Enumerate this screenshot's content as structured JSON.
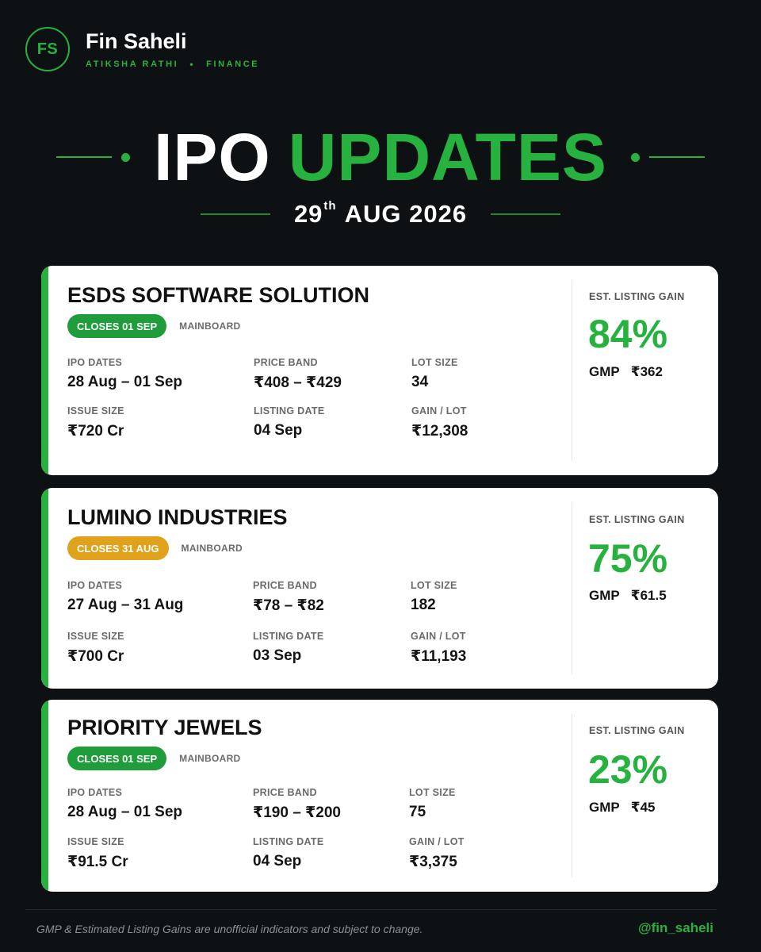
{
  "brand": {
    "logo_text": "FS",
    "name": "Fin Saheli",
    "author": "ATIKSHA RATHI",
    "separator": "•",
    "category": "FINANCE",
    "accent_color": "#27b23f"
  },
  "title": {
    "word1": "IPO",
    "word2": "UPDATES",
    "date_day": "29",
    "date_suffix": "th",
    "date_rest": "AUG 2026"
  },
  "labels": {
    "ipo_dates": "IPO DATES",
    "price_band": "PRICE BAND",
    "lot_size": "LOT SIZE",
    "issue_size": "ISSUE SIZE",
    "listing_date": "LISTING DATE",
    "gain_lot": "GAIN / LOT",
    "est_listing_gain": "EST. LISTING GAIN",
    "gmp": "GMP"
  },
  "ipos": [
    {
      "company": "ESDS SOFTWARE SOLUTION",
      "closes": "CLOSES 01 SEP",
      "closes_color": "#1f9d3a",
      "board": "MAINBOARD",
      "ipo_dates": "28 Aug – 01 Sep",
      "price_band": "₹408 – ₹429",
      "lot_size": "34",
      "issue_size": "₹720 Cr",
      "listing_date": "04 Sep",
      "gain_lot": "₹12,308",
      "listing_gain": "84%",
      "gmp": "₹362"
    },
    {
      "company": "LUMINO INDUSTRIES",
      "closes": "CLOSES 31 AUG",
      "closes_color": "#e0a21a",
      "board": "MAINBOARD",
      "ipo_dates": "27 Aug – 31 Aug",
      "price_band": "₹78 – ₹82",
      "lot_size": "182",
      "issue_size": "₹700 Cr",
      "listing_date": "03 Sep",
      "gain_lot": "₹11,193",
      "listing_gain": "75%",
      "gmp": "₹61.5"
    },
    {
      "company": "PRIORITY JEWELS",
      "closes": "CLOSES 01 SEP",
      "closes_color": "#1f9d3a",
      "board": "MAINBOARD",
      "ipo_dates": "28 Aug – 01 Sep",
      "price_band": "₹190 – ₹200",
      "lot_size": "75",
      "issue_size": "₹91.5 Cr",
      "listing_date": "04 Sep",
      "gain_lot": "₹3,375",
      "listing_gain": "23%",
      "gmp": "₹45"
    }
  ],
  "footer": {
    "disclaimer": "GMP & Estimated Listing Gains are unofficial indicators and subject to change.",
    "handle": "@fin_saheli"
  }
}
